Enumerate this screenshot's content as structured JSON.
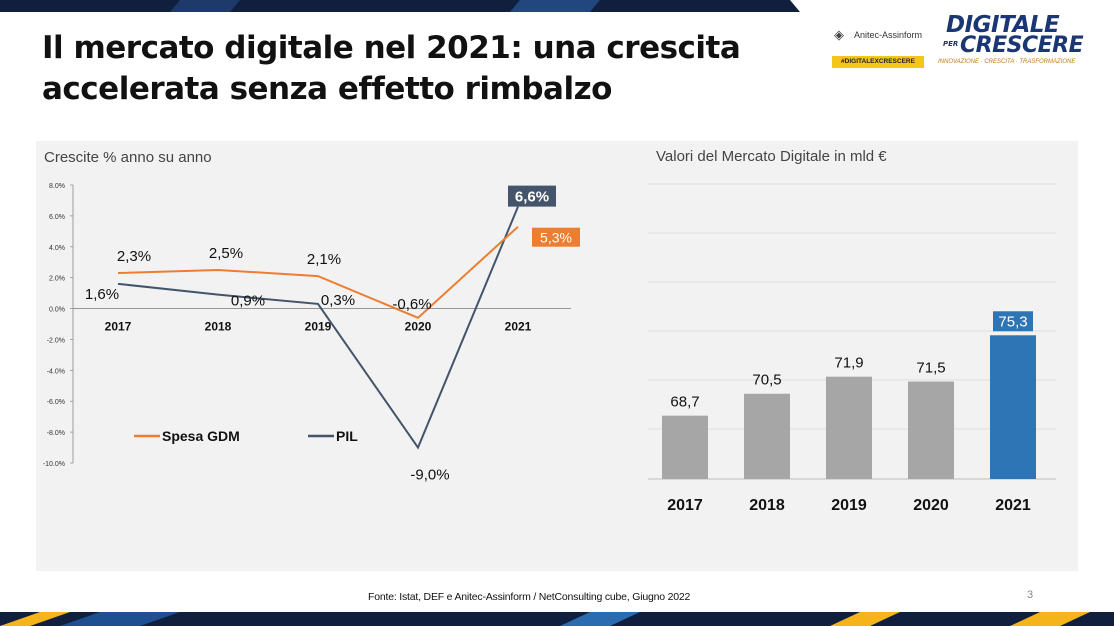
{
  "slide": {
    "title_line1": "Il mercato digitale nel 2021: una crescita",
    "title_line2": "accelerata senza effetto rimbalzo",
    "source": "Fonte: Istat, DEF e Anitec-Assinform / NetConsulting cube, Giugno 2022",
    "page_number": "3"
  },
  "logos": {
    "anitec_name": "Anitec-Assinform",
    "anitec_tag": "#DIGITALEXCRESCERE",
    "digitale_line1": "DIGITALE",
    "digitale_per": "PER",
    "digitale_line2": "CRESCERE",
    "digitale_tagline": "INNOVAZIONE · CRESCITA · TRASFORMAZIONE"
  },
  "colors": {
    "orange": "#ed7d31",
    "dark": "#44546a",
    "gray_bar": "#a6a6a6",
    "blue_bar": "#2e75b6",
    "panel": "#f2f2f2"
  },
  "chart_data": [
    {
      "type": "line",
      "title": "Crescite % anno su anno",
      "x": [
        "2017",
        "2018",
        "2019",
        "2020",
        "2021"
      ],
      "ylim": [
        -10.0,
        8.0
      ],
      "ytick_labels": [
        "8.0%",
        "6.0%",
        "4.0%",
        "2.0%",
        "0.0%",
        "-2.0%",
        "-4.0%",
        "-6.0%",
        "-8.0%",
        "-10.0%"
      ],
      "ytick_values": [
        8,
        6,
        4,
        2,
        0,
        -2,
        -4,
        -6,
        -8,
        -10
      ],
      "legend_position": "bottom-left",
      "series": [
        {
          "name": "Spesa GDM",
          "values": [
            2.3,
            2.5,
            2.1,
            -0.6,
            5.3
          ],
          "labels": [
            "2,3%",
            "2,5%",
            "2,1%",
            "-0,6%",
            "5,3%"
          ],
          "color": "#ed7d31"
        },
        {
          "name": "PIL",
          "values": [
            1.6,
            0.9,
            0.3,
            -9.0,
            6.6
          ],
          "labels": [
            "1,6%",
            "0,9%",
            "0,3%",
            "-9,0%",
            "6,6%"
          ],
          "color": "#44546a"
        }
      ]
    },
    {
      "type": "bar",
      "title": "Valori del Mercato Digitale in mld €",
      "categories": [
        "2017",
        "2018",
        "2019",
        "2020",
        "2021"
      ],
      "values": [
        68.7,
        70.5,
        71.9,
        71.5,
        75.3
      ],
      "labels": [
        "68,7",
        "70,5",
        "71,9",
        "71,5",
        "75,3"
      ],
      "colors": [
        "#a6a6a6",
        "#a6a6a6",
        "#a6a6a6",
        "#a6a6a6",
        "#2e75b6"
      ],
      "grid": true
    }
  ]
}
